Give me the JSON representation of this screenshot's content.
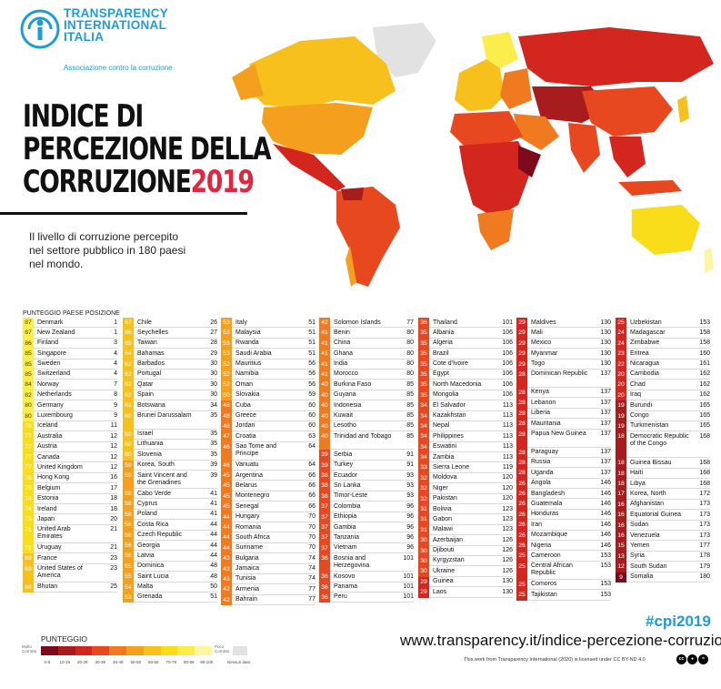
{
  "header": {
    "org_lines": [
      "TRANSPARENCY",
      "INTERNATIONAL",
      "ITALIA"
    ],
    "tagline": "Associazione contro la corruzione",
    "title_lines": [
      "INDICE DI",
      "PERCEZIONE DELLA",
      "CORRUZIONE"
    ],
    "title_year": "2019",
    "subtitle_lines": [
      "Il livello di corruzione percepito",
      "nel settore pubblico in 180 paesi",
      "nel mondo."
    ]
  },
  "table": {
    "header": "PUNTEGGIO PAESE   POSIZIONE",
    "columns": [
      [
        {
          "s": 87,
          "c": "Denmark",
          "r": 1
        },
        {
          "s": 87,
          "c": "New Zealand",
          "r": 1
        },
        {
          "s": 86,
          "c": "Finland",
          "r": 3
        },
        {
          "s": 85,
          "c": "Singapore",
          "r": 4
        },
        {
          "s": 85,
          "c": "Sweden",
          "r": 4
        },
        {
          "s": 85,
          "c": "Switzerland",
          "r": 4
        },
        {
          "s": 84,
          "c": "Norway",
          "r": 7
        },
        {
          "s": 82,
          "c": "Netherlands",
          "r": 8
        },
        {
          "s": 80,
          "c": "Germany",
          "r": 9
        },
        {
          "s": 80,
          "c": "Luxembourg",
          "r": 9
        },
        {
          "s": 78,
          "c": "Iceland",
          "r": 11
        },
        {
          "s": 77,
          "c": "Australia",
          "r": 12
        },
        {
          "s": 77,
          "c": "Austria",
          "r": 12
        },
        {
          "s": 77,
          "c": "Canada",
          "r": 12
        },
        {
          "s": 77,
          "c": "United Kingdom",
          "r": 12
        },
        {
          "s": 76,
          "c": "Hong Kong",
          "r": 16
        },
        {
          "s": 75,
          "c": "Belgium",
          "r": 17
        },
        {
          "s": 74,
          "c": "Estonia",
          "r": 18
        },
        {
          "s": 74,
          "c": "Ireland",
          "r": 18
        },
        {
          "s": 73,
          "c": "Japan",
          "r": 20
        },
        {
          "s": 71,
          "c": "United Arab Emirates",
          "r": 21,
          "h": 2
        },
        {
          "s": 71,
          "c": "Uruguay",
          "r": 21
        },
        {
          "s": 69,
          "c": "France",
          "r": 23
        },
        {
          "s": 69,
          "c": "United States of America",
          "r": 23,
          "h": 2
        },
        {
          "s": 68,
          "c": "Bhutan",
          "r": 25
        }
      ],
      [
        {
          "s": 67,
          "c": "Chile",
          "r": 26
        },
        {
          "s": 66,
          "c": "Seychelles",
          "r": 27
        },
        {
          "s": 65,
          "c": "Taiwan",
          "r": 28
        },
        {
          "s": 64,
          "c": "Bahamas",
          "r": 29
        },
        {
          "s": 62,
          "c": "Barbados",
          "r": 30
        },
        {
          "s": 62,
          "c": "Portugal",
          "r": 30
        },
        {
          "s": 62,
          "c": "Qatar",
          "r": 30
        },
        {
          "s": 62,
          "c": "Spain",
          "r": 30
        },
        {
          "s": 61,
          "c": "Botswana",
          "r": 34
        },
        {
          "s": 60,
          "c": "Brunei Darussalam",
          "r": 35,
          "h": 2
        },
        {
          "s": 60,
          "c": "Israel",
          "r": 35
        },
        {
          "s": 60,
          "c": "Lithuania",
          "r": 35
        },
        {
          "s": 60,
          "c": "Slovenia",
          "r": 35
        },
        {
          "s": 59,
          "c": "Korea, South",
          "r": 39
        },
        {
          "s": 59,
          "c": "Saint Vincent and the Grenadines",
          "r": 39,
          "h": 2
        },
        {
          "s": 58,
          "c": "Cabo Verde",
          "r": 41
        },
        {
          "s": 58,
          "c": "Cyprus",
          "r": 41
        },
        {
          "s": 58,
          "c": "Poland",
          "r": 41
        },
        {
          "s": 56,
          "c": "Costa Rica",
          "r": 44
        },
        {
          "s": 56,
          "c": "Czech Republic",
          "r": 44
        },
        {
          "s": 56,
          "c": "Georgia",
          "r": 44
        },
        {
          "s": 56,
          "c": "Latvia",
          "r": 44
        },
        {
          "s": 55,
          "c": "Dominica",
          "r": 48
        },
        {
          "s": 55,
          "c": "Saint Lucia",
          "r": 48
        },
        {
          "s": 54,
          "c": "Malta",
          "r": 50
        },
        {
          "s": 53,
          "c": "Grenada",
          "r": 51
        }
      ],
      [
        {
          "s": 53,
          "c": "Italy",
          "r": 51
        },
        {
          "s": 53,
          "c": "Malaysia",
          "r": 51
        },
        {
          "s": 53,
          "c": "Rwanda",
          "r": 51
        },
        {
          "s": 53,
          "c": "Saudi Arabia",
          "r": 51
        },
        {
          "s": 52,
          "c": "Mauritius",
          "r": 56
        },
        {
          "s": 52,
          "c": "Namibia",
          "r": 56
        },
        {
          "s": 52,
          "c": "Oman",
          "r": 56
        },
        {
          "s": 50,
          "c": "Slovakia",
          "r": 59
        },
        {
          "s": 48,
          "c": "Cuba",
          "r": 60
        },
        {
          "s": 48,
          "c": "Greece",
          "r": 60
        },
        {
          "s": 48,
          "c": "Jordan",
          "r": 60
        },
        {
          "s": 47,
          "c": "Croatia",
          "r": 63
        },
        {
          "s": 46,
          "c": "Sao Tome and Principe",
          "r": 64,
          "h": 2
        },
        {
          "s": 46,
          "c": "Vanuatu",
          "r": 64
        },
        {
          "s": 45,
          "c": "Argentina",
          "r": 66
        },
        {
          "s": 45,
          "c": "Belarus",
          "r": 66
        },
        {
          "s": 45,
          "c": "Montenegro",
          "r": 66
        },
        {
          "s": 45,
          "c": "Senegal",
          "r": 66
        },
        {
          "s": 44,
          "c": "Hungary",
          "r": 70
        },
        {
          "s": 44,
          "c": "Romania",
          "r": 70
        },
        {
          "s": 44,
          "c": "South Africa",
          "r": 70
        },
        {
          "s": 44,
          "c": "Suriname",
          "r": 70
        },
        {
          "s": 43,
          "c": "Bulgaria",
          "r": 74
        },
        {
          "s": 43,
          "c": "Jamaica",
          "r": 74
        },
        {
          "s": 43,
          "c": "Tunisia",
          "r": 74
        },
        {
          "s": 42,
          "c": "Armenia",
          "r": 77
        },
        {
          "s": 42,
          "c": "Bahrain",
          "r": 77
        }
      ],
      [
        {
          "s": 42,
          "c": "Solomon Islands",
          "r": 77
        },
        {
          "s": 41,
          "c": "Benin",
          "r": 80
        },
        {
          "s": 41,
          "c": "China",
          "r": 80
        },
        {
          "s": 41,
          "c": "Ghana",
          "r": 80
        },
        {
          "s": 41,
          "c": "India",
          "r": 80
        },
        {
          "s": 41,
          "c": "Morocco",
          "r": 80
        },
        {
          "s": 40,
          "c": "Burkina Faso",
          "r": 85
        },
        {
          "s": 40,
          "c": "Guyana",
          "r": 85
        },
        {
          "s": 40,
          "c": "Indonesia",
          "r": 85
        },
        {
          "s": 40,
          "c": "Kuwait",
          "r": 85
        },
        {
          "s": 40,
          "c": "Lesotho",
          "r": 85
        },
        {
          "s": 40,
          "c": "Trinidad and Tobago",
          "r": 85,
          "h": 2
        },
        {
          "s": 39,
          "c": "Serbia",
          "r": 91
        },
        {
          "s": 39,
          "c": "Turkey",
          "r": 91
        },
        {
          "s": 38,
          "c": "Ecuador",
          "r": 93
        },
        {
          "s": 38,
          "c": "Sri Lanka",
          "r": 93
        },
        {
          "s": 38,
          "c": "Timor-Leste",
          "r": 93
        },
        {
          "s": 37,
          "c": "Colombia",
          "r": 96
        },
        {
          "s": 37,
          "c": "Ethiopia",
          "r": 96
        },
        {
          "s": 37,
          "c": "Gambia",
          "r": 96
        },
        {
          "s": 37,
          "c": "Tanzania",
          "r": 96
        },
        {
          "s": 37,
          "c": "Vietnam",
          "r": 96
        },
        {
          "s": 36,
          "c": "Bosnia and Herzegovina",
          "r": 101,
          "h": 2
        },
        {
          "s": 36,
          "c": "Kosovo",
          "r": 101
        },
        {
          "s": 36,
          "c": "Panama",
          "r": 101
        },
        {
          "s": 36,
          "c": "Peru",
          "r": 101
        }
      ],
      [
        {
          "s": 36,
          "c": "Thailand",
          "r": 101
        },
        {
          "s": 35,
          "c": "Albania",
          "r": 106
        },
        {
          "s": 35,
          "c": "Algeria",
          "r": 106
        },
        {
          "s": 35,
          "c": "Brazil",
          "r": 106
        },
        {
          "s": 35,
          "c": "Cote d'Ivoire",
          "r": 106
        },
        {
          "s": 35,
          "c": "Egypt",
          "r": 106
        },
        {
          "s": 35,
          "c": "North Macedonia",
          "r": 106
        },
        {
          "s": 35,
          "c": "Mongolia",
          "r": 106
        },
        {
          "s": 34,
          "c": "El Salvador",
          "r": 113
        },
        {
          "s": 34,
          "c": "Kazakhstan",
          "r": 113
        },
        {
          "s": 34,
          "c": "Nepal",
          "r": 113
        },
        {
          "s": 34,
          "c": "Philippines",
          "r": 113
        },
        {
          "s": 34,
          "c": "Eswatini",
          "r": 113
        },
        {
          "s": 34,
          "c": "Zambia",
          "r": 113
        },
        {
          "s": 33,
          "c": "Sierra Leone",
          "r": 119
        },
        {
          "s": 32,
          "c": "Moldova",
          "r": 120
        },
        {
          "s": 32,
          "c": "Niger",
          "r": 120
        },
        {
          "s": 32,
          "c": "Pakistan",
          "r": 120
        },
        {
          "s": 31,
          "c": "Bolivia",
          "r": 123
        },
        {
          "s": 31,
          "c": "Gabon",
          "r": 123
        },
        {
          "s": 31,
          "c": "Malawi",
          "r": 123
        },
        {
          "s": 30,
          "c": "Azerbaijan",
          "r": 126
        },
        {
          "s": 30,
          "c": "Djibouti",
          "r": 126
        },
        {
          "s": 30,
          "c": "Kyrgyzstan",
          "r": 126
        },
        {
          "s": 30,
          "c": "Ukraine",
          "r": 126
        },
        {
          "s": 29,
          "c": "Guinea",
          "r": 130
        },
        {
          "s": 29,
          "c": "Laos",
          "r": 130
        }
      ],
      [
        {
          "s": 29,
          "c": "Maldives",
          "r": 130
        },
        {
          "s": 29,
          "c": "Mali",
          "r": 130
        },
        {
          "s": 29,
          "c": "Mexico",
          "r": 130
        },
        {
          "s": 29,
          "c": "Myanmar",
          "r": 130
        },
        {
          "s": 29,
          "c": "Togo",
          "r": 130
        },
        {
          "s": 28,
          "c": "Dominican Republic",
          "r": 137,
          "h": 2
        },
        {
          "s": 28,
          "c": "Kenya",
          "r": 137
        },
        {
          "s": 28,
          "c": "Lebanon",
          "r": 137
        },
        {
          "s": 28,
          "c": "Liberia",
          "r": 137
        },
        {
          "s": 28,
          "c": "Mauritania",
          "r": 137
        },
        {
          "s": 28,
          "c": "Papua New Guinea",
          "r": 137,
          "h": 2
        },
        {
          "s": 28,
          "c": "Paraguay",
          "r": 137
        },
        {
          "s": 28,
          "c": "Russia",
          "r": 137
        },
        {
          "s": 28,
          "c": "Uganda",
          "r": 137
        },
        {
          "s": 26,
          "c": "Angola",
          "r": 146
        },
        {
          "s": 26,
          "c": "Bangladesh",
          "r": 146
        },
        {
          "s": 26,
          "c": "Guatemala",
          "r": 146
        },
        {
          "s": 26,
          "c": "Honduras",
          "r": 146
        },
        {
          "s": 26,
          "c": "Iran",
          "r": 146
        },
        {
          "s": 26,
          "c": "Mozambique",
          "r": 146
        },
        {
          "s": 26,
          "c": "Nigeria",
          "r": 146
        },
        {
          "s": 25,
          "c": "Cameroon",
          "r": 153
        },
        {
          "s": 25,
          "c": "Central African Republic",
          "r": 153,
          "h": 2
        },
        {
          "s": 25,
          "c": "Comoros",
          "r": 153
        },
        {
          "s": 25,
          "c": "Tajikistan",
          "r": 153
        }
      ],
      [
        {
          "s": 25,
          "c": "Uzbekistan",
          "r": 153
        },
        {
          "s": 24,
          "c": "Madagascar",
          "r": 158
        },
        {
          "s": 24,
          "c": "Zimbabwe",
          "r": 158
        },
        {
          "s": 23,
          "c": "Eritrea",
          "r": 160
        },
        {
          "s": 22,
          "c": "Nicaragua",
          "r": 161
        },
        {
          "s": 20,
          "c": "Cambodia",
          "r": 162
        },
        {
          "s": 20,
          "c": "Chad",
          "r": 162
        },
        {
          "s": 20,
          "c": "Iraq",
          "r": 162
        },
        {
          "s": 19,
          "c": "Burundi",
          "r": 165
        },
        {
          "s": 19,
          "c": "Congo",
          "r": 165
        },
        {
          "s": 19,
          "c": "Turkmenistan",
          "r": 165
        },
        {
          "s": 18,
          "c": "Democratic Republic of the Congo",
          "r": 168,
          "h": 3
        },
        {
          "s": 18,
          "c": "Guinea Bissau",
          "r": 168
        },
        {
          "s": 18,
          "c": "Haiti",
          "r": 168
        },
        {
          "s": 18,
          "c": "Libya",
          "r": 168
        },
        {
          "s": 17,
          "c": "Korea, North",
          "r": 172
        },
        {
          "s": 16,
          "c": "Afghanistan",
          "r": 173
        },
        {
          "s": 16,
          "c": "Equatorial Guinea",
          "r": 173
        },
        {
          "s": 16,
          "c": "Sudan",
          "r": 173
        },
        {
          "s": 16,
          "c": "Venezuela",
          "r": 173
        },
        {
          "s": 15,
          "c": "Yemen",
          "r": 177
        },
        {
          "s": 13,
          "c": "Syria",
          "r": 178
        },
        {
          "s": 12,
          "c": "South Sudan",
          "r": 179
        },
        {
          "s": 9,
          "c": "Somalia",
          "r": 180
        }
      ]
    ]
  },
  "legend": {
    "title": "PUNTEGGIO",
    "low_label": "Molto Corrotto",
    "high_label": "Poco Corrotto",
    "no_data_label": "Nessun dato",
    "ticks": [
      "0-9",
      "10-19",
      "20-29",
      "30-39",
      "40-49",
      "50-59",
      "60-69",
      "70-79",
      "80-89",
      "90-100"
    ],
    "colors": [
      "#7d0a1c",
      "#a81c1e",
      "#d3261f",
      "#e8481f",
      "#f07a1f",
      "#f49f1e",
      "#f7c01c",
      "#f9dd1a",
      "#fbed4c",
      "#fdf6a0"
    ],
    "no_data_color": "#e2e2e2"
  },
  "footer": {
    "hashtag": "#cpi2019",
    "website": "www.transparency.it/indice-percezione-corruzione",
    "license": "This work from Transparency International (2020) is licensed under CC BY-ND 4.0",
    "cc_icons": [
      "cc-icon",
      "by-icon",
      "nd-icon"
    ]
  }
}
